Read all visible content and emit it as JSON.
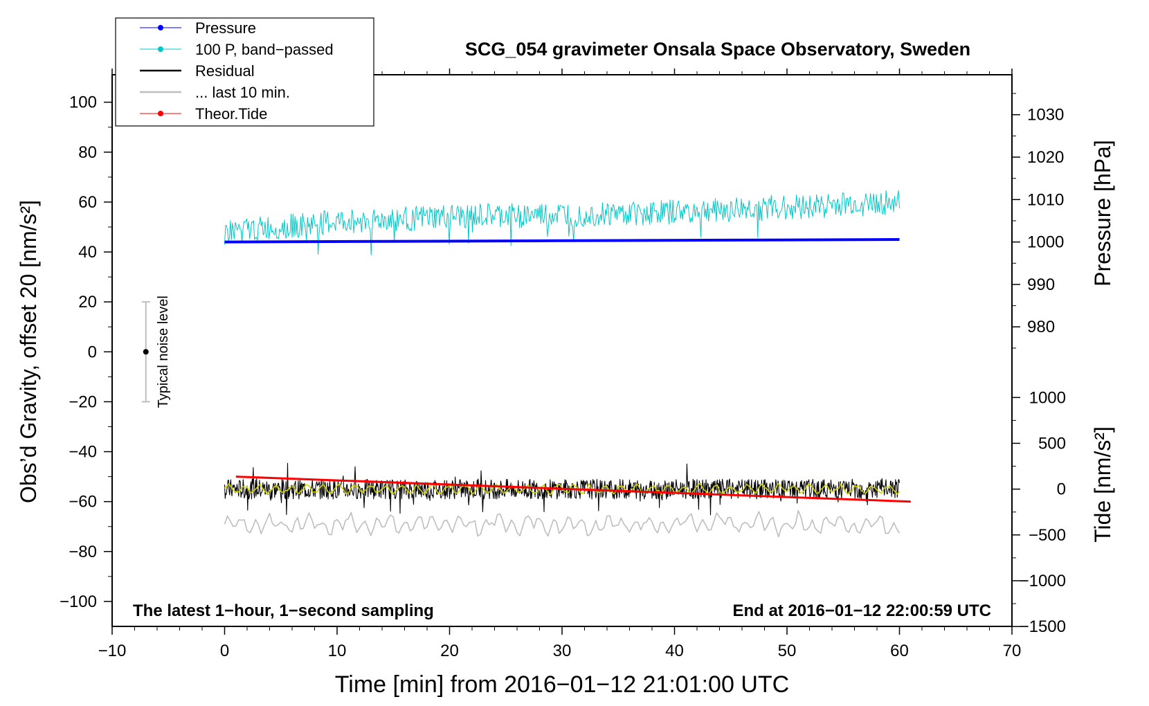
{
  "chart_data": {
    "type": "line",
    "title": "SCG_054 gravimeter Onsala Space Observatory, Sweden",
    "xlabel": "Time [min] from 2016−01−12 21:01:00 UTC",
    "ylabel_left": "Obs’d Gravity, offset 20 [nm/s²]",
    "ylabel_right_top": "Pressure [hPa]",
    "ylabel_right_bottom": "Tide [nm/s²]",
    "xlim": [
      -10,
      70
    ],
    "ylim": [
      -110,
      111
    ],
    "x_ticks": [
      {
        "value": -10,
        "label": "−10"
      },
      {
        "value": 0,
        "label": "0"
      },
      {
        "value": 10,
        "label": "10"
      },
      {
        "value": 20,
        "label": "20"
      },
      {
        "value": 30,
        "label": "30"
      },
      {
        "value": 40,
        "label": "40"
      },
      {
        "value": 50,
        "label": "50"
      },
      {
        "value": 60,
        "label": "60"
      },
      {
        "value": 70,
        "label": "70"
      }
    ],
    "y_ticks": [
      {
        "value": 100,
        "label": "100"
      },
      {
        "value": 80,
        "label": "80"
      },
      {
        "value": 60,
        "label": "60"
      },
      {
        "value": 40,
        "label": "40"
      },
      {
        "value": 20,
        "label": "20"
      },
      {
        "value": 0,
        "label": "0"
      },
      {
        "value": -20,
        "label": "−20"
      },
      {
        "value": -40,
        "label": "−40"
      },
      {
        "value": -60,
        "label": "−60"
      },
      {
        "value": -80,
        "label": "−80"
      },
      {
        "value": -100,
        "label": "−100"
      }
    ],
    "pressure_axis": {
      "ticks": [
        {
          "value": 1030,
          "label": "1030"
        },
        {
          "value": 1020,
          "label": "1020"
        },
        {
          "value": 1010,
          "label": "1010"
        },
        {
          "value": 1000,
          "label": "1000"
        },
        {
          "value": 990,
          "label": "990"
        },
        {
          "value": 980,
          "label": "980"
        }
      ],
      "ref_hpa": 1000,
      "ref_y": 44,
      "y_per_hpa": 1.7
    },
    "tide_axis": {
      "ticks": [
        {
          "value": 1000,
          "label": "1000"
        },
        {
          "value": 500,
          "label": "500"
        },
        {
          "value": 0,
          "label": "0"
        },
        {
          "value": -500,
          "label": "−500"
        },
        {
          "value": -1000,
          "label": "−1000"
        },
        {
          "value": -1500,
          "label": "−1500"
        }
      ],
      "ref_nms2": 0,
      "ref_y": -55,
      "y_per_nms2": 0.0367
    },
    "legend": [
      {
        "name": "Pressure",
        "color": "#0000ff",
        "style": "line-dot"
      },
      {
        "name": "100 P, band−passed",
        "color": "#00c8c8",
        "style": "line-dot"
      },
      {
        "name": "Residual",
        "color": "#000000",
        "style": "line"
      },
      {
        "name": "... last 10 min.",
        "color": "#bebebe",
        "style": "line"
      },
      {
        "name": "Theor.Tide",
        "color": "#ff0000",
        "style": "line-dot"
      }
    ],
    "series": [
      {
        "name": "Pressure",
        "color": "#0000ff",
        "x": [
          0,
          60
        ],
        "y": [
          44,
          45
        ]
      },
      {
        "name": "100 P, band−passed",
        "color": "#00c8c8",
        "x": [
          0,
          10,
          20,
          30,
          40,
          50,
          60
        ],
        "y": [
          48,
          52,
          54,
          55,
          56,
          58,
          60
        ],
        "amplitude": 5
      },
      {
        "name": "Residual",
        "color": "#000000",
        "x": [
          0,
          60
        ],
        "y": [
          -55,
          -55
        ],
        "amplitude": 4
      },
      {
        "name": "... last 10 min.",
        "color": "#bebebe",
        "x": [
          0,
          60
        ],
        "y": [
          -69,
          -69
        ],
        "amplitude": 4
      },
      {
        "name": "smoothed residual",
        "color": "#d2d200",
        "x": [
          0,
          60
        ],
        "y": [
          -55,
          -55
        ],
        "amplitude": 1.5
      },
      {
        "name": "Theor.Tide",
        "color": "#ff0000",
        "x": [
          1,
          61
        ],
        "y": [
          -50,
          -60
        ]
      }
    ],
    "noise_level": {
      "label": "Typical noise level",
      "x": -7,
      "center": 0,
      "low": -20,
      "high": 20
    },
    "annotations": {
      "bottom_left": "The latest 1−hour, 1−second sampling",
      "bottom_right": "End at 2016−01−12 22:00:59 UTC"
    }
  }
}
